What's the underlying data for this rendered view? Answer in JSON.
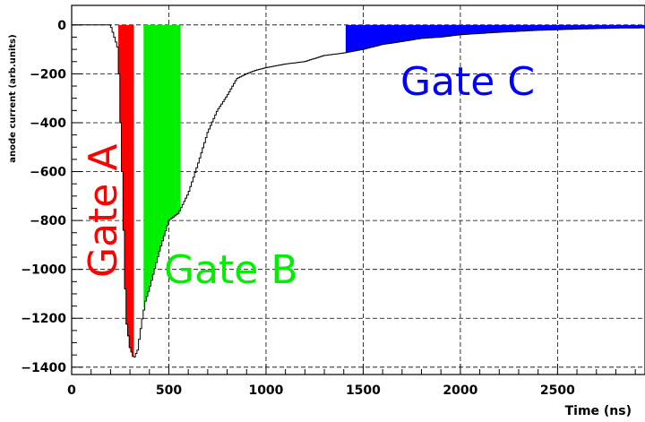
{
  "chart_data": {
    "type": "area",
    "title": "",
    "xlabel": "Time (ns)",
    "ylabel": "anode current (arb.units)",
    "xlim": [
      0,
      2950
    ],
    "ylim": [
      -1430,
      80
    ],
    "grid": true,
    "x_ticks": [
      "0",
      "500",
      "1000",
      "1500",
      "2000",
      "2500"
    ],
    "y_ticks": [
      "0",
      "−200",
      "−400",
      "−600",
      "−800",
      "−1000",
      "−1200",
      "−1400"
    ],
    "x": [
      0,
      200,
      240,
      260,
      280,
      300,
      320,
      340,
      360,
      380,
      400,
      450,
      500,
      550,
      600,
      650,
      700,
      750,
      800,
      850,
      900,
      950,
      1000,
      1100,
      1200,
      1300,
      1400,
      1500,
      1600,
      1700,
      1800,
      1900,
      2000,
      2200,
      2400,
      2600,
      2800,
      2950
    ],
    "values": [
      0,
      0,
      -100,
      -600,
      -1200,
      -1320,
      -1365,
      -1330,
      -1220,
      -1130,
      -1080,
      -930,
      -800,
      -770,
      -690,
      -570,
      -440,
      -350,
      -290,
      -220,
      -200,
      -185,
      -175,
      -160,
      -150,
      -125,
      -115,
      -100,
      -80,
      -68,
      -55,
      -50,
      -40,
      -30,
      -22,
      -17,
      -13,
      -12
    ],
    "gates": [
      {
        "name": "Gate A",
        "color": "#ff0000",
        "from": 240,
        "to": 320
      },
      {
        "name": "Gate B",
        "color": "#00ee00",
        "from": 370,
        "to": 560
      },
      {
        "name": "Gate C",
        "color": "#0000ff",
        "from": 1410,
        "to": 2950
      }
    ]
  }
}
